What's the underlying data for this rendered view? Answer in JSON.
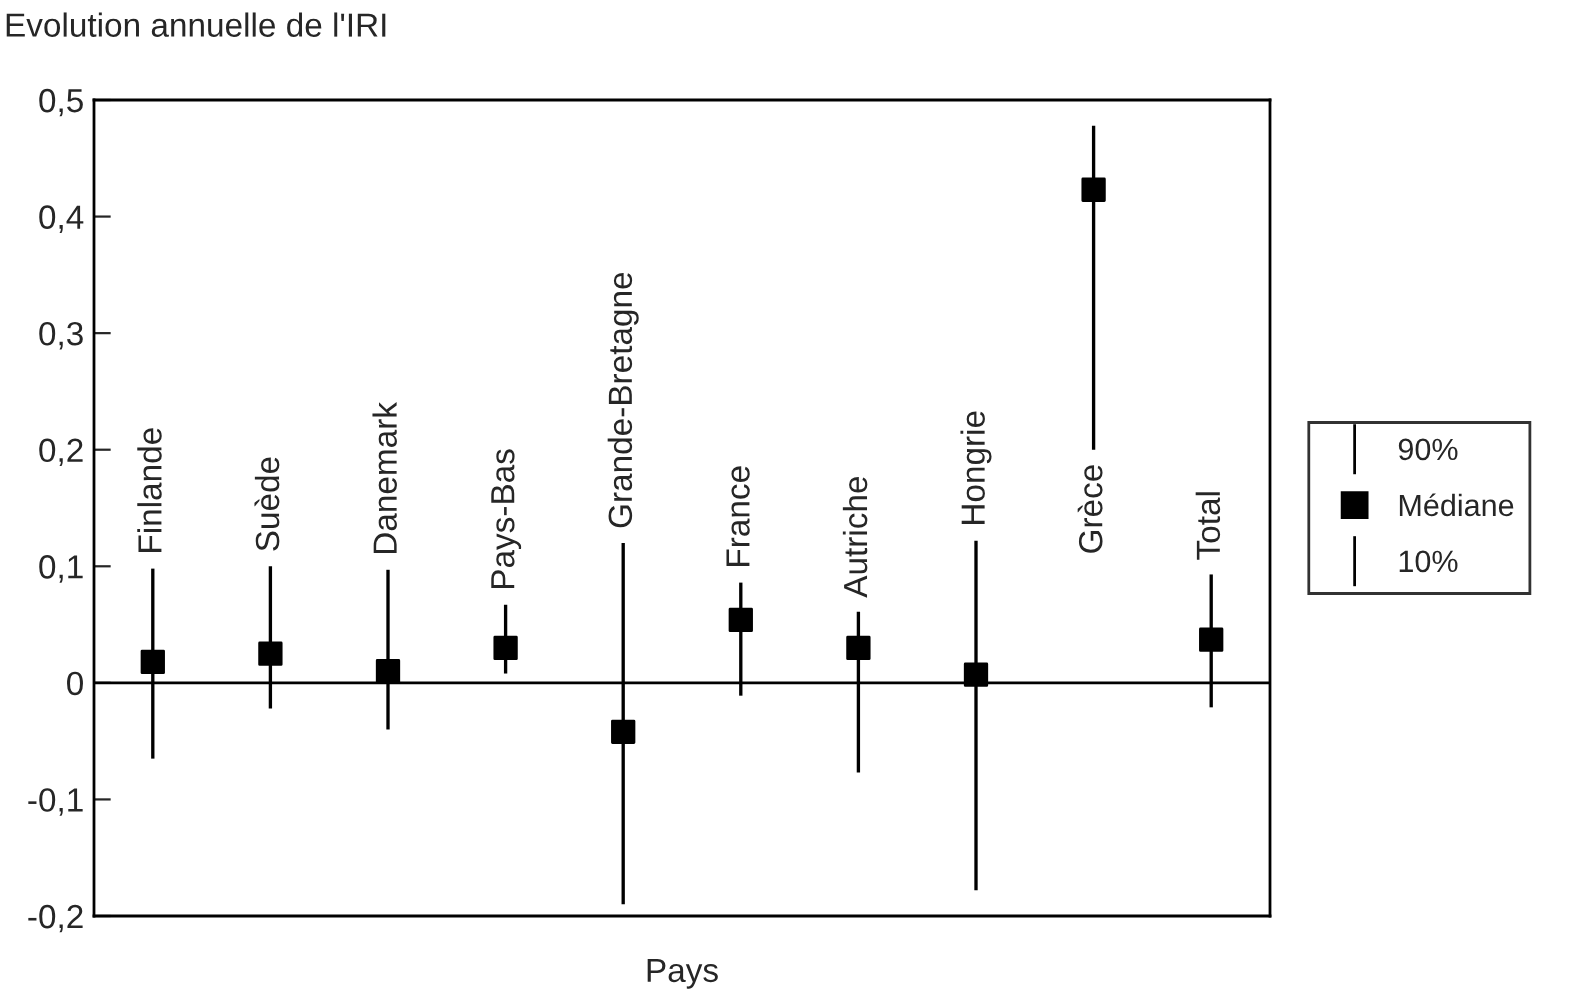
{
  "chart_data": {
    "type": "scatter",
    "title": "Evolution annuelle de l'IRI",
    "xlabel": "Pays",
    "categories": [
      "Finlande",
      "Suède",
      "Danemark",
      "Pays-Bas",
      "Grande-Bretagne",
      "France",
      "Autriche",
      "Hongrie",
      "Grèce",
      "Total"
    ],
    "series": [
      {
        "name": "Médiane",
        "color": "#000000",
        "values": [
          0.018,
          0.025,
          0.01,
          0.03,
          -0.042,
          0.054,
          0.03,
          0.007,
          0.423,
          0.037
        ],
        "errors": [
          [
            -0.065,
            0.098
          ],
          [
            -0.022,
            0.1
          ],
          [
            -0.04,
            0.097
          ],
          [
            0.008,
            0.067
          ],
          [
            -0.19,
            0.12
          ],
          [
            -0.011,
            0.086
          ],
          [
            -0.077,
            0.061
          ],
          [
            -0.178,
            0.122
          ],
          [
            0.2,
            0.478
          ],
          [
            -0.021,
            0.093
          ]
        ]
      }
    ],
    "annotations": [
      "90%",
      "10%"
    ],
    "ylim": [
      -0.2,
      0.5
    ],
    "yticks": [
      {
        "value": -0.2,
        "label": "-0,2"
      },
      {
        "value": -0.1,
        "label": "-0,1"
      },
      {
        "value": 0,
        "label": "0"
      },
      {
        "value": 0.1,
        "label": "0,1"
      },
      {
        "value": 0.2,
        "label": "0,2"
      },
      {
        "value": 0.3,
        "label": "0,3"
      },
      {
        "value": 0.4,
        "label": "0,4"
      },
      {
        "value": 0.5,
        "label": "0,5"
      }
    ],
    "ref_lines": [
      {
        "axis": "y",
        "value": 0,
        "color": "#000000"
      }
    ],
    "marker": "square",
    "grid": false,
    "legend": "right",
    "tick_labels": "y"
  }
}
